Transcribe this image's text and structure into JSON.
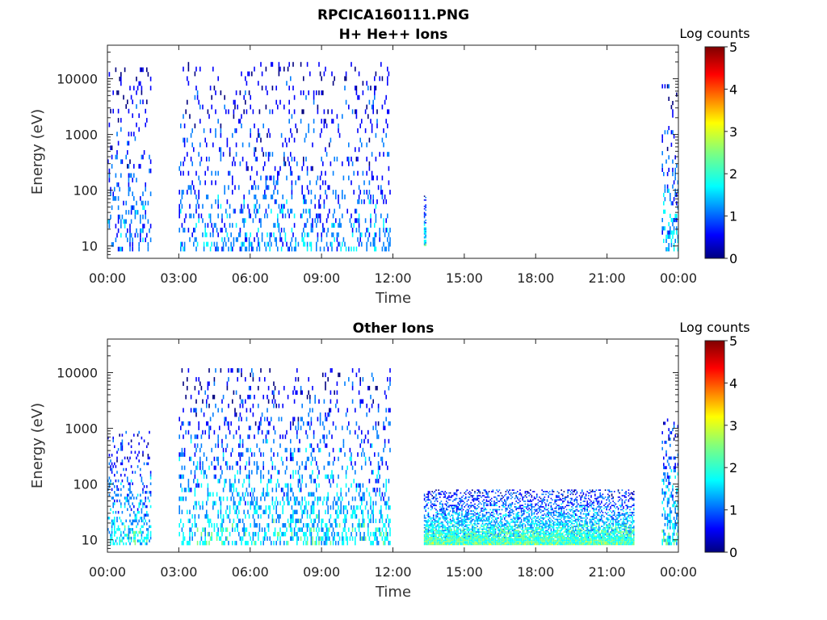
{
  "figure_title": "RPCICA160111.PNG",
  "colorbar_label": "Log counts",
  "colorbar_ticks": [
    "0",
    "1",
    "2",
    "3",
    "4",
    "5"
  ],
  "colormap": [
    "#00007f",
    "#0000ff",
    "#007fff",
    "#00ffff",
    "#7fff7f",
    "#ffff00",
    "#ff7f00",
    "#ff0000",
    "#7f0000"
  ],
  "chart_data": [
    {
      "type": "heatmap",
      "title": "H+ He++ Ions",
      "xlabel": "Time",
      "ylabel": "Energy (eV)",
      "x_ticks": [
        "00:00",
        "03:00",
        "06:00",
        "09:00",
        "12:00",
        "15:00",
        "18:00",
        "21:00",
        "00:00"
      ],
      "y_ticks": [
        "10",
        "100",
        "1000",
        "10000"
      ],
      "y_scale": "log",
      "ylim": [
        6,
        40000
      ],
      "xlim_hours": [
        0,
        24
      ],
      "color_range_log_counts": [
        0,
        5
      ],
      "data_blocks": [
        {
          "t_start_h": 0.0,
          "t_end_h": 1.8,
          "e_min": 8,
          "e_max": 16000,
          "density": 0.22,
          "level_mean": 1.0
        },
        {
          "t_start_h": 3.0,
          "t_end_h": 11.9,
          "e_min": 8,
          "e_max": 20000,
          "density": 0.2,
          "level_mean": 1.0
        },
        {
          "t_start_h": 13.3,
          "t_end_h": 13.4,
          "e_min": 10,
          "e_max": 80,
          "density": 0.8,
          "level_mean": 1.5
        },
        {
          "t_start_h": 23.3,
          "t_end_h": 24.0,
          "e_min": 8,
          "e_max": 8000,
          "density": 0.3,
          "level_mean": 1.2
        }
      ]
    },
    {
      "type": "heatmap",
      "title": "Other Ions",
      "xlabel": "Time",
      "ylabel": "Energy (eV)",
      "x_ticks": [
        "00:00",
        "03:00",
        "06:00",
        "09:00",
        "12:00",
        "15:00",
        "18:00",
        "21:00",
        "00:00"
      ],
      "y_ticks": [
        "10",
        "100",
        "1000",
        "10000"
      ],
      "y_scale": "log",
      "ylim": [
        6,
        40000
      ],
      "xlim_hours": [
        0,
        24
      ],
      "color_range_log_counts": [
        0,
        5
      ],
      "data_blocks": [
        {
          "t_start_h": 0.0,
          "t_end_h": 1.8,
          "e_min": 8,
          "e_max": 900,
          "density": 0.35,
          "level_mean": 1.4
        },
        {
          "t_start_h": 3.0,
          "t_end_h": 11.9,
          "e_min": 8,
          "e_max": 12000,
          "density": 0.3,
          "level_mean": 1.4
        },
        {
          "t_start_h": 13.3,
          "t_end_h": 22.1,
          "e_min": 8,
          "e_max": 80,
          "density": 0.9,
          "level_mean": 1.8
        },
        {
          "t_start_h": 23.3,
          "t_end_h": 24.0,
          "e_min": 8,
          "e_max": 1500,
          "density": 0.5,
          "level_mean": 1.5
        }
      ]
    }
  ]
}
